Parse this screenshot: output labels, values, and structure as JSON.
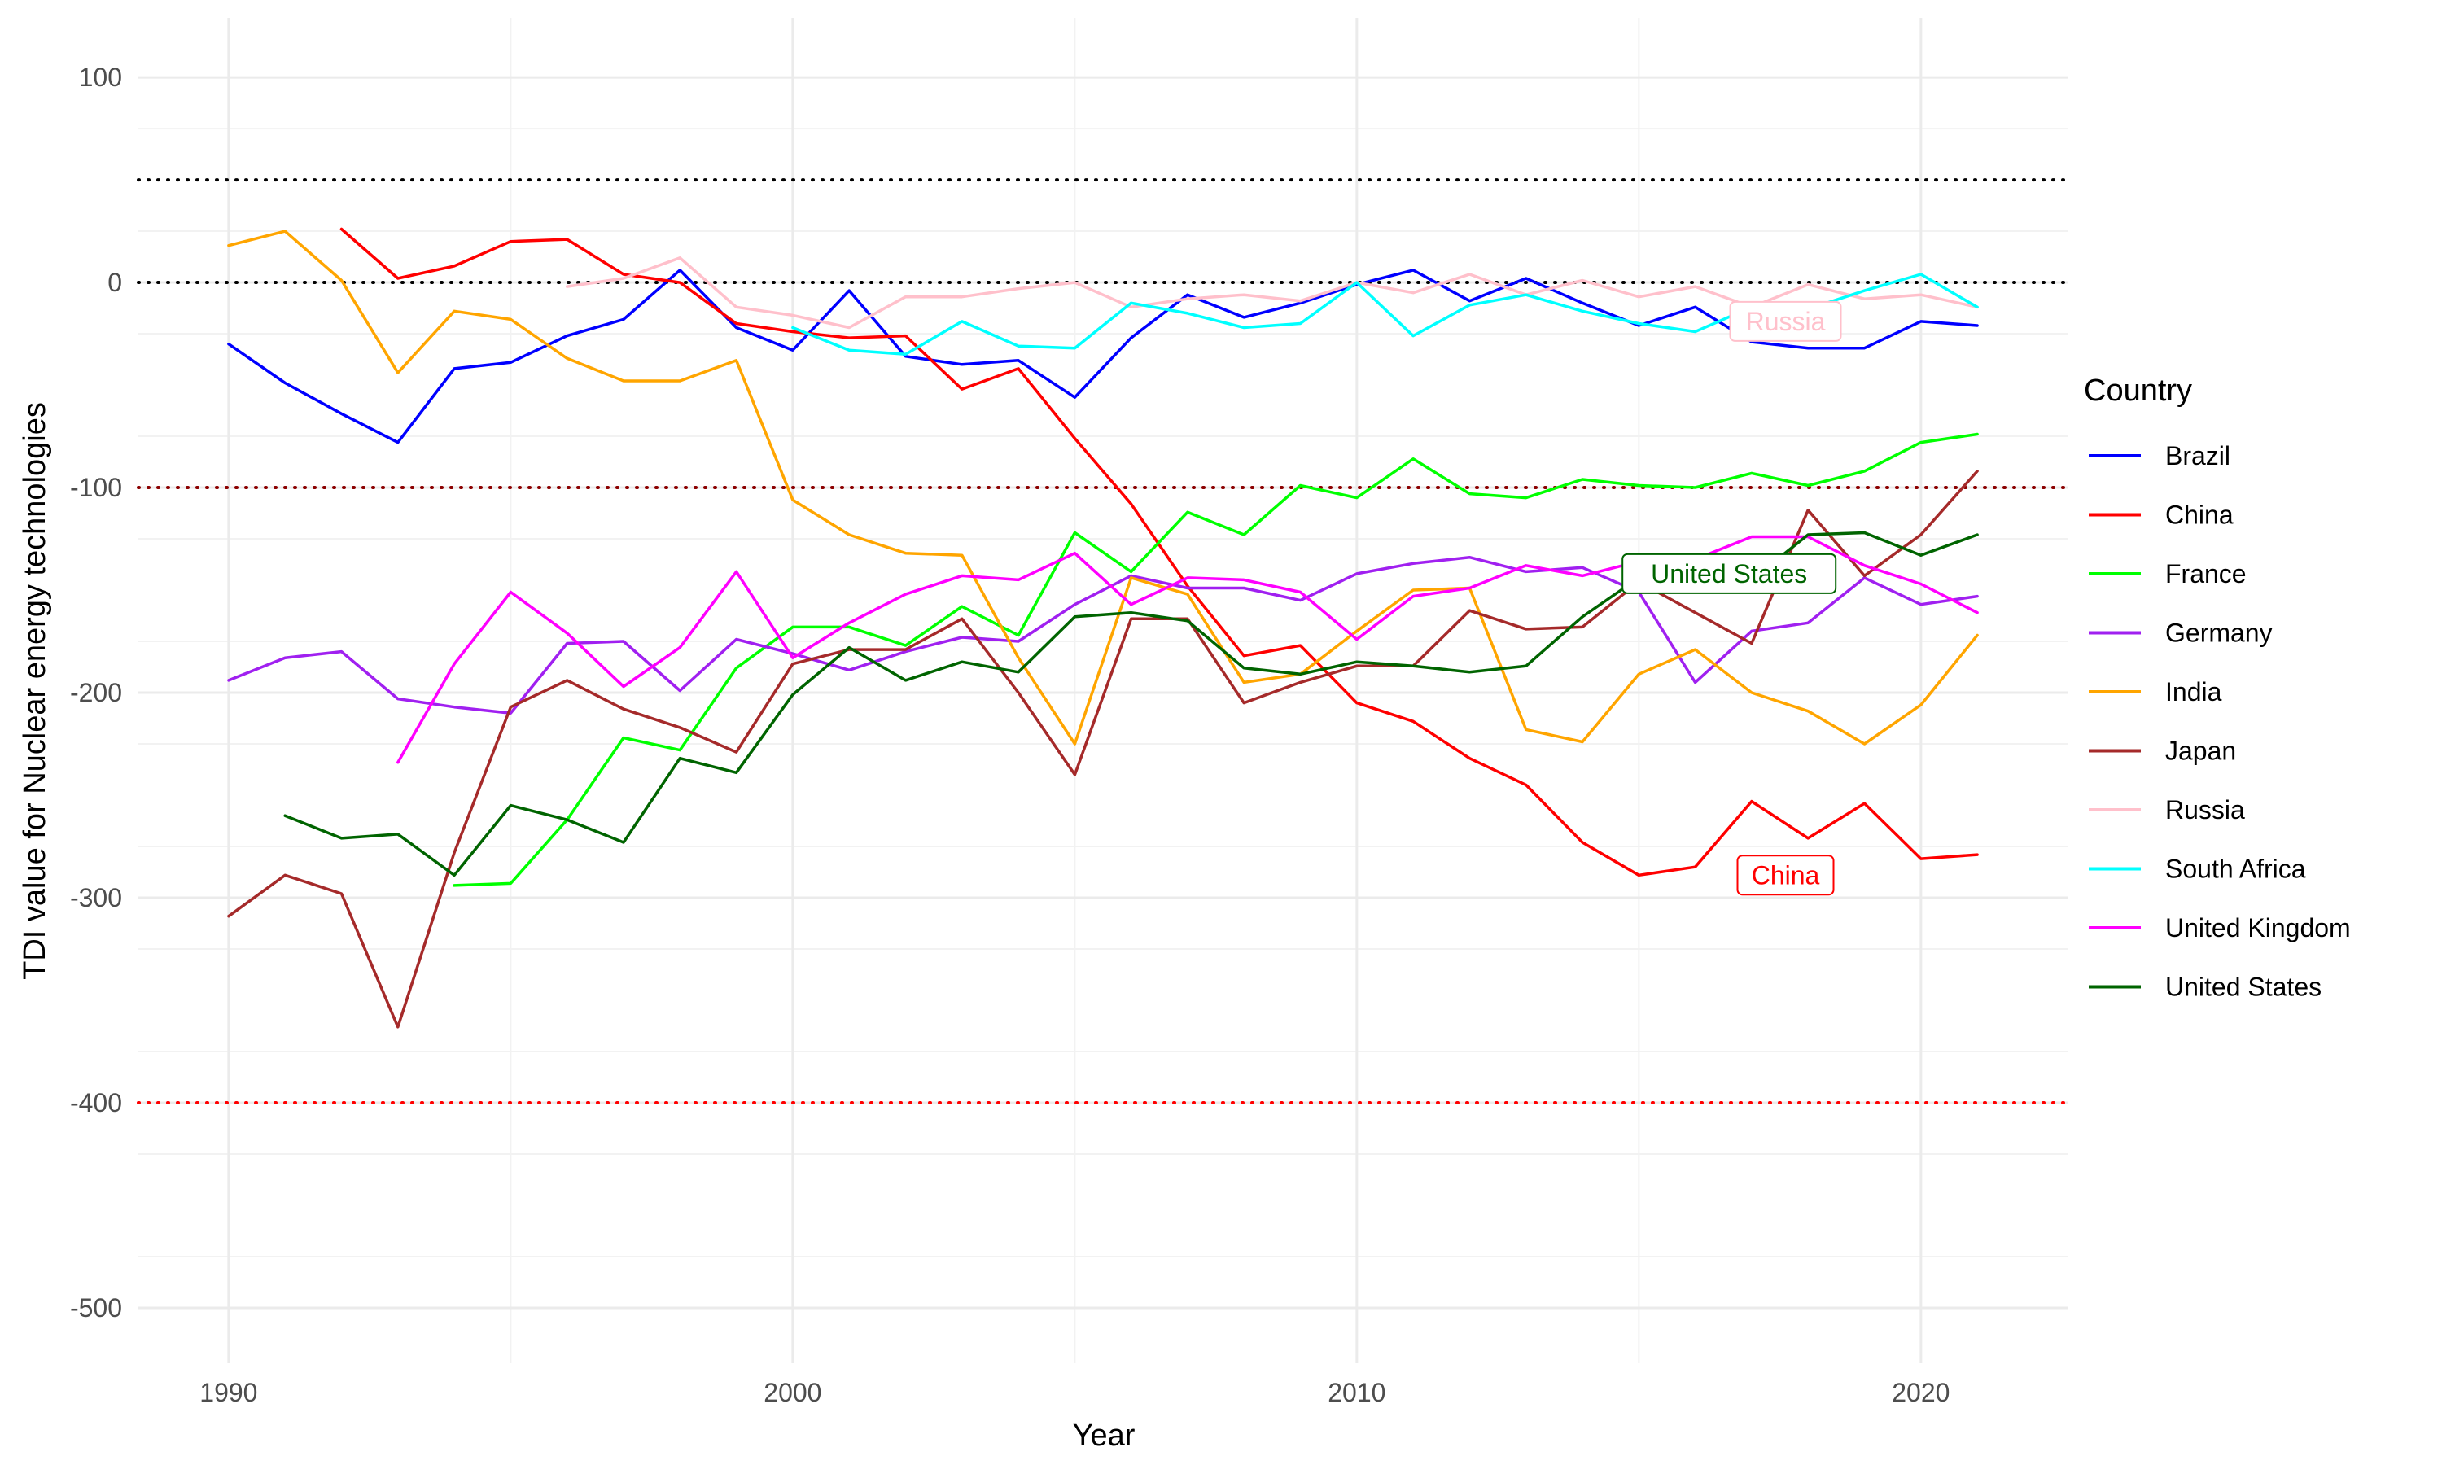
{
  "chart_data": {
    "type": "line",
    "title": "",
    "xlabel": "Year",
    "ylabel": "TDI value for Nuclear energy technologies",
    "xlim": [
      1988.4,
      2022.6
    ],
    "ylim": [
      -527,
      129
    ],
    "x_ticks": [
      1990,
      2000,
      2010,
      2020
    ],
    "y_ticks": [
      100,
      0,
      -100,
      -200,
      -300,
      -400,
      -500
    ],
    "grid": true,
    "legend": {
      "title": "Country",
      "position": "right"
    },
    "reference_lines": [
      {
        "y": 50,
        "color": "#000000"
      },
      {
        "y": 0,
        "color": "#000000"
      },
      {
        "y": -100,
        "color": "#8b0000"
      },
      {
        "y": -400,
        "color": "#ff0000"
      }
    ],
    "x": [
      1990,
      1991,
      1992,
      1993,
      1994,
      1995,
      1996,
      1997,
      1998,
      1999,
      2000,
      2001,
      2002,
      2003,
      2004,
      2005,
      2006,
      2007,
      2008,
      2009,
      2010,
      2011,
      2012,
      2013,
      2014,
      2015,
      2016,
      2017,
      2018,
      2019,
      2020,
      2021
    ],
    "series": [
      {
        "name": "Brazil",
        "color": "#0000ff",
        "values": [
          -30,
          -49,
          -64,
          -78,
          -42,
          -39,
          -26,
          -18,
          6,
          -22,
          -33,
          -4,
          -36,
          -40,
          -38,
          -56,
          -27,
          -6,
          -17,
          -10,
          -1,
          6,
          -9,
          2,
          -10,
          -21,
          -12,
          -29,
          -32,
          -32,
          -19,
          -21
        ]
      },
      {
        "name": "China",
        "color": "#ff0000",
        "values": [
          null,
          null,
          26,
          2,
          8,
          20,
          21,
          4,
          0,
          -20,
          -24,
          -27,
          -26,
          -52,
          -42,
          -76,
          -108,
          -148,
          -182,
          -177,
          -205,
          -214,
          -232,
          -245,
          -273,
          -289,
          -285,
          -253,
          -271,
          -254,
          -281,
          -279
        ]
      },
      {
        "name": "France",
        "color": "#00ff00",
        "values": [
          null,
          null,
          null,
          null,
          -294,
          -293,
          -262,
          -222,
          -228,
          -188,
          -168,
          -168,
          -177,
          -158,
          -172,
          -122,
          -141,
          -112,
          -123,
          -99,
          -105,
          -86,
          -103,
          -105,
          -96,
          -99,
          -100,
          -93,
          -99,
          -92,
          -78,
          -74
        ]
      },
      {
        "name": "Germany",
        "color": "#a020f0",
        "values": [
          -194,
          -183,
          -180,
          -203,
          -207,
          -210,
          -176,
          -175,
          -199,
          -174,
          -181,
          -189,
          -180,
          -173,
          -175,
          -157,
          -143,
          -149,
          -149,
          -155,
          -142,
          -137,
          -134,
          -141,
          -139,
          -151,
          -195,
          -170,
          -166,
          -144,
          -157,
          -153
        ]
      },
      {
        "name": "India",
        "color": "#ffa500",
        "values": [
          18,
          25,
          1,
          -44,
          -14,
          -18,
          -37,
          -48,
          -48,
          -38,
          -106,
          -123,
          -132,
          -133,
          -183,
          -225,
          -144,
          -152,
          -195,
          -191,
          -170,
          -150,
          -149,
          -218,
          -224,
          -191,
          -179,
          -200,
          -209,
          -225,
          -206,
          -172
        ]
      },
      {
        "name": "Japan",
        "color": "#a52a2a",
        "values": [
          -309,
          -289,
          -298,
          -363,
          -278,
          -207,
          -194,
          -208,
          -217,
          -229,
          -186,
          -179,
          -179,
          -164,
          -200,
          -240,
          -164,
          -164,
          -205,
          -195,
          -187,
          -187,
          -160,
          -169,
          -168,
          -146,
          -161,
          -176,
          -111,
          -143,
          -123,
          -92
        ]
      },
      {
        "name": "Russia",
        "color": "#ffc0cb",
        "values": [
          null,
          null,
          null,
          null,
          null,
          null,
          -2,
          2,
          12,
          -12,
          -16,
          -22,
          -7,
          -7,
          -3,
          0,
          -12,
          -8,
          -6,
          -9,
          0,
          -5,
          4,
          -6,
          1,
          -7,
          -2,
          -12,
          -1,
          -8,
          -6,
          -12
        ]
      },
      {
        "name": "South Africa",
        "color": "#00ffff",
        "values": [
          null,
          null,
          null,
          null,
          null,
          null,
          null,
          null,
          null,
          null,
          -22,
          -33,
          -35,
          -19,
          -31,
          -32,
          -10,
          -15,
          -22,
          -20,
          0,
          -26,
          -11,
          -6,
          -14,
          -20,
          -24,
          -12,
          -13,
          -4,
          4,
          -12
        ]
      },
      {
        "name": "United Kingdom",
        "color": "#ff00ff",
        "values": [
          null,
          null,
          null,
          -234,
          -186,
          -151,
          -171,
          -197,
          -178,
          -141,
          -183,
          -166,
          -152,
          -143,
          -145,
          -132,
          -157,
          -144,
          -145,
          -151,
          -174,
          -153,
          -149,
          -138,
          -143,
          -136,
          -135,
          -124,
          -124,
          -138,
          -147,
          -161
        ]
      },
      {
        "name": "United States",
        "color": "#006400",
        "values": [
          null,
          -260,
          -271,
          -269,
          -289,
          -255,
          -262,
          -273,
          -232,
          -239,
          -201,
          -178,
          -194,
          -185,
          -190,
          -163,
          -161,
          -165,
          -188,
          -191,
          -185,
          -187,
          -190,
          -187,
          -163,
          -144,
          -139,
          -145,
          -123,
          -122,
          -133,
          -123
        ]
      }
    ],
    "annotations": [
      {
        "text": "Russia",
        "x": 2017.6,
        "y": -19,
        "color": "#ffc0cb"
      },
      {
        "text": "United States",
        "x": 2016.6,
        "y": -142,
        "color": "#006400"
      },
      {
        "text": "China",
        "x": 2017.6,
        "y": -289,
        "color": "#ff0000"
      }
    ]
  }
}
